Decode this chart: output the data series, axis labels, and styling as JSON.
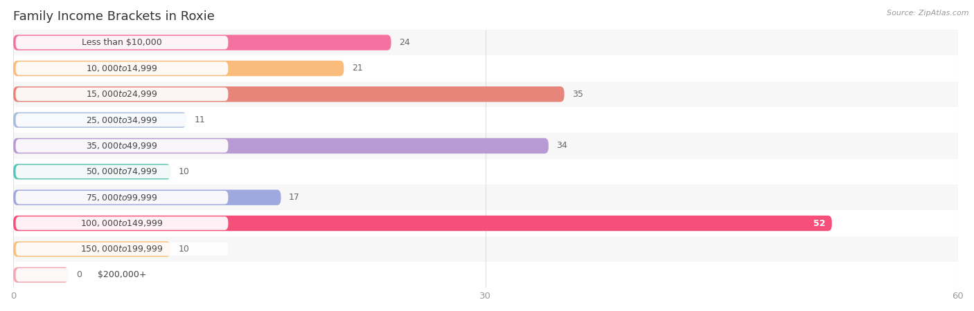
{
  "title": "Family Income Brackets in Roxie",
  "source": "Source: ZipAtlas.com",
  "categories": [
    "Less than $10,000",
    "$10,000 to $14,999",
    "$15,000 to $24,999",
    "$25,000 to $34,999",
    "$35,000 to $49,999",
    "$50,000 to $74,999",
    "$75,000 to $99,999",
    "$100,000 to $149,999",
    "$150,000 to $199,999",
    "$200,000+"
  ],
  "values": [
    24,
    21,
    35,
    11,
    34,
    10,
    17,
    52,
    10,
    0
  ],
  "bar_colors": [
    "#f472a0",
    "#f9bc7a",
    "#e8857a",
    "#a8bce0",
    "#b89ad4",
    "#5ec4b8",
    "#a0a8e0",
    "#f4507a",
    "#f9c07a",
    "#f4a8b0"
  ],
  "row_bg_colors": [
    "#f7f7f7",
    "#ffffff"
  ],
  "xlim": [
    0,
    60
  ],
  "xticks": [
    0,
    30,
    60
  ],
  "title_fontsize": 13,
  "bar_height": 0.6,
  "background_color": "#ffffff",
  "grid_color": "#e0e0e0",
  "label_bg": "#ffffff",
  "label_text_color": "#444444",
  "value_color_outside": "#666666",
  "value_color_inside": "#ffffff"
}
